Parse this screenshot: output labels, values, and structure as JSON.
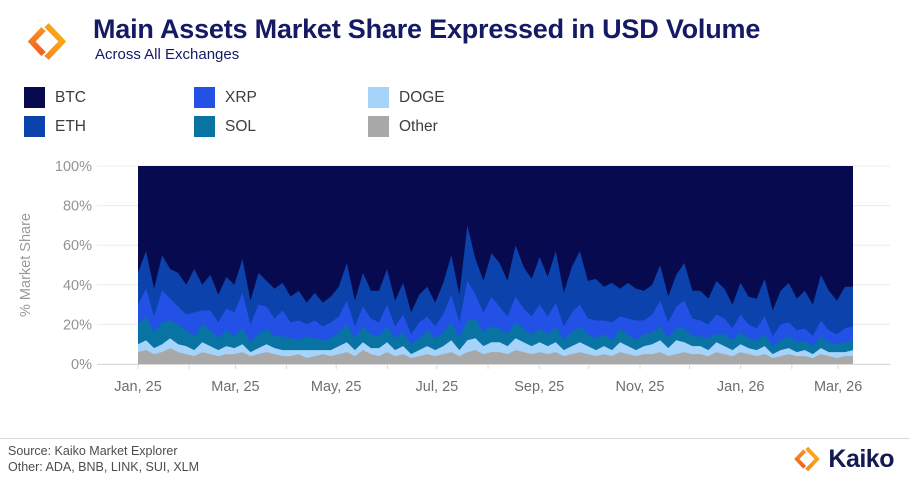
{
  "header": {
    "title": "Main Assets Market Share Expressed in USD Volume",
    "subtitle": "Across All Exchanges"
  },
  "legend": {
    "items": [
      {
        "label": "BTC",
        "color": "#080a4f"
      },
      {
        "label": "XRP",
        "color": "#2351e6"
      },
      {
        "label": "DOGE",
        "color": "#a6d3f9"
      },
      {
        "label": "ETH",
        "color": "#0b42ab"
      },
      {
        "label": "SOL",
        "color": "#0973a3"
      },
      {
        "label": "Other",
        "color": "#a8a8a8"
      }
    ]
  },
  "footer": {
    "source": "Source: Kaiko Market Explorer",
    "other_note": "Other: ADA, BNB, LINK, SUI, XLM",
    "brand": "Kaiko"
  },
  "chart_data": {
    "type": "area",
    "stacked": true,
    "unit": "percent",
    "title": "Main Assets Market Share Expressed in USD Volume",
    "subtitle": "Across All Exchanges",
    "ylabel": "% Market Share",
    "ylim": [
      0,
      100
    ],
    "grid": "horizontal",
    "y_ticks": [
      "0%",
      "20%",
      "40%",
      "60%",
      "80%",
      "100%"
    ],
    "x_range": {
      "start": "Jan 2025",
      "end": "Mar 2026",
      "total_days": 433
    },
    "x_ticks": [
      {
        "label": "Jan, 25",
        "day": 0
      },
      {
        "label": "Mar, 25",
        "day": 59
      },
      {
        "label": "May, 25",
        "day": 120
      },
      {
        "label": "Jul, 25",
        "day": 181
      },
      {
        "label": "Sep, 25",
        "day": 243
      },
      {
        "label": "Nov, 25",
        "day": 304
      },
      {
        "label": "Jan, 26",
        "day": 365
      },
      {
        "label": "Mar, 26",
        "day": 424
      }
    ],
    "x_minor_tick_days": [
      0,
      31,
      59,
      90,
      120,
      151,
      181,
      212,
      243,
      273,
      304,
      334,
      365,
      396,
      424
    ],
    "stack_order_bottom_to_top": [
      "Other",
      "DOGE",
      "SOL",
      "XRP",
      "ETH",
      "BTC"
    ],
    "series": [
      {
        "name": "Other",
        "color": "#a8a8a8",
        "values": [
          6,
          7,
          5,
          6,
          8,
          6,
          5,
          4,
          6,
          5,
          4,
          5,
          5,
          6,
          4,
          5,
          6,
          5,
          4,
          4,
          5,
          3,
          4,
          5,
          4,
          5,
          6,
          4,
          7,
          5,
          4,
          6,
          4,
          5,
          3,
          4,
          5,
          4,
          5,
          6,
          4,
          6,
          7,
          5,
          6,
          6,
          5,
          7,
          6,
          5,
          6,
          5,
          6,
          4,
          5,
          6,
          5,
          4,
          5,
          4,
          6,
          5,
          4,
          5,
          5,
          6,
          4,
          5,
          6,
          5,
          5,
          4,
          6,
          5,
          4,
          6,
          5,
          4,
          5,
          3,
          4,
          5,
          4,
          4,
          3,
          5,
          4,
          3,
          4,
          4
        ]
      },
      {
        "name": "DOGE",
        "color": "#a6d3f9",
        "values": [
          4,
          5,
          3,
          4,
          5,
          4,
          4,
          3,
          5,
          4,
          3,
          4,
          3,
          4,
          2,
          3,
          4,
          3,
          3,
          3,
          2,
          4,
          3,
          2,
          3,
          4,
          5,
          3,
          4,
          3,
          4,
          5,
          3,
          4,
          2,
          3,
          4,
          3,
          4,
          6,
          3,
          6,
          6,
          4,
          5,
          5,
          4,
          6,
          5,
          4,
          5,
          4,
          5,
          3,
          4,
          5,
          4,
          3,
          4,
          3,
          5,
          4,
          3,
          4,
          5,
          6,
          4,
          7,
          5,
          4,
          4,
          3,
          5,
          4,
          3,
          4,
          3,
          3,
          4,
          2,
          3,
          3,
          2,
          3,
          2,
          3,
          2,
          3,
          2,
          3
        ]
      },
      {
        "name": "SOL",
        "color": "#0973a3",
        "values": [
          10,
          12,
          8,
          11,
          9,
          10,
          8,
          7,
          9,
          8,
          6,
          8,
          6,
          8,
          5,
          7,
          8,
          6,
          7,
          6,
          5,
          7,
          6,
          5,
          6,
          7,
          9,
          6,
          8,
          7,
          6,
          8,
          6,
          7,
          5,
          6,
          8,
          6,
          7,
          9,
          6,
          10,
          10,
          7,
          8,
          7,
          6,
          8,
          7,
          6,
          7,
          6,
          8,
          5,
          7,
          8,
          6,
          6,
          6,
          5,
          7,
          6,
          5,
          6,
          6,
          7,
          5,
          6,
          7,
          5,
          5,
          6,
          4,
          6,
          5,
          6,
          5,
          5,
          6,
          4,
          5,
          6,
          5,
          5,
          4,
          6,
          5,
          4,
          5,
          5
        ]
      },
      {
        "name": "XRP",
        "color": "#2351e6",
        "values": [
          10,
          14,
          8,
          16,
          11,
          9,
          8,
          12,
          7,
          10,
          8,
          11,
          12,
          18,
          9,
          15,
          11,
          9,
          13,
          8,
          10,
          6,
          9,
          7,
          8,
          8,
          12,
          6,
          10,
          8,
          7,
          11,
          6,
          9,
          5,
          8,
          7,
          6,
          9,
          14,
          8,
          20,
          12,
          10,
          15,
          11,
          9,
          13,
          10,
          9,
          12,
          9,
          12,
          7,
          10,
          11,
          8,
          9,
          7,
          9,
          6,
          8,
          10,
          7,
          9,
          13,
          8,
          11,
          14,
          9,
          8,
          7,
          10,
          8,
          6,
          9,
          7,
          6,
          9,
          5,
          8,
          7,
          6,
          6,
          5,
          8,
          6,
          5,
          7,
          7
        ]
      },
      {
        "name": "ETH",
        "color": "#0b42ab",
        "values": [
          16,
          19,
          14,
          18,
          15,
          17,
          15,
          22,
          13,
          18,
          14,
          16,
          14,
          17,
          12,
          16,
          13,
          15,
          14,
          13,
          15,
          11,
          14,
          12,
          13,
          15,
          19,
          13,
          17,
          14,
          16,
          18,
          13,
          16,
          11,
          14,
          15,
          12,
          16,
          20,
          14,
          28,
          18,
          16,
          22,
          22,
          18,
          26,
          21,
          19,
          24,
          20,
          26,
          17,
          23,
          27,
          19,
          21,
          17,
          20,
          14,
          18,
          16,
          15,
          15,
          18,
          13,
          16,
          19,
          14,
          15,
          13,
          17,
          15,
          12,
          16,
          14,
          15,
          19,
          13,
          17,
          20,
          16,
          19,
          16,
          23,
          20,
          17,
          21,
          20
        ]
      },
      {
        "name": "BTC",
        "color": "#080a4f",
        "values": "remainder_to_100"
      }
    ]
  }
}
